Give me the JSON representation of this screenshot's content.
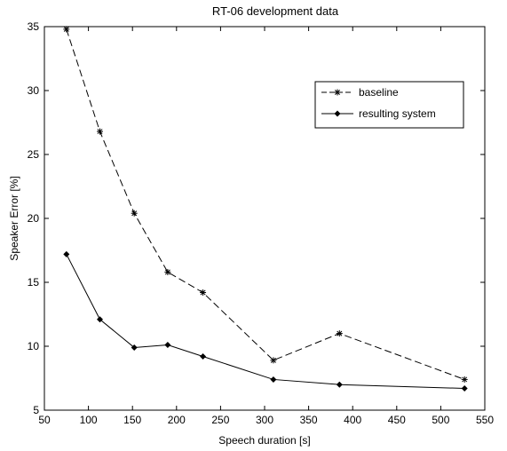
{
  "chart_data": {
    "type": "line",
    "title": "RT-06 development data",
    "xlabel": "Speech duration [s]",
    "ylabel": "Speaker Error [%]",
    "xlim": [
      50,
      550
    ],
    "ylim": [
      5,
      35
    ],
    "xticks": [
      50,
      100,
      150,
      200,
      250,
      300,
      350,
      400,
      450,
      500,
      550
    ],
    "yticks": [
      5,
      10,
      15,
      20,
      25,
      30,
      35
    ],
    "grid": false,
    "legend_position": "top-right",
    "series": [
      {
        "name": "baseline",
        "line_style": "dashed",
        "marker": "asterisk",
        "color": "#000000",
        "x": [
          75,
          113,
          152,
          190,
          230,
          310,
          385,
          527
        ],
        "y": [
          34.8,
          26.8,
          20.4,
          15.8,
          14.2,
          8.9,
          11.0,
          7.4
        ]
      },
      {
        "name": "resulting system",
        "line_style": "solid",
        "marker": "diamond",
        "color": "#000000",
        "x": [
          75,
          113,
          152,
          190,
          230,
          310,
          385,
          527
        ],
        "y": [
          17.2,
          12.1,
          9.9,
          10.1,
          9.2,
          7.4,
          7.0,
          6.7
        ]
      }
    ]
  }
}
